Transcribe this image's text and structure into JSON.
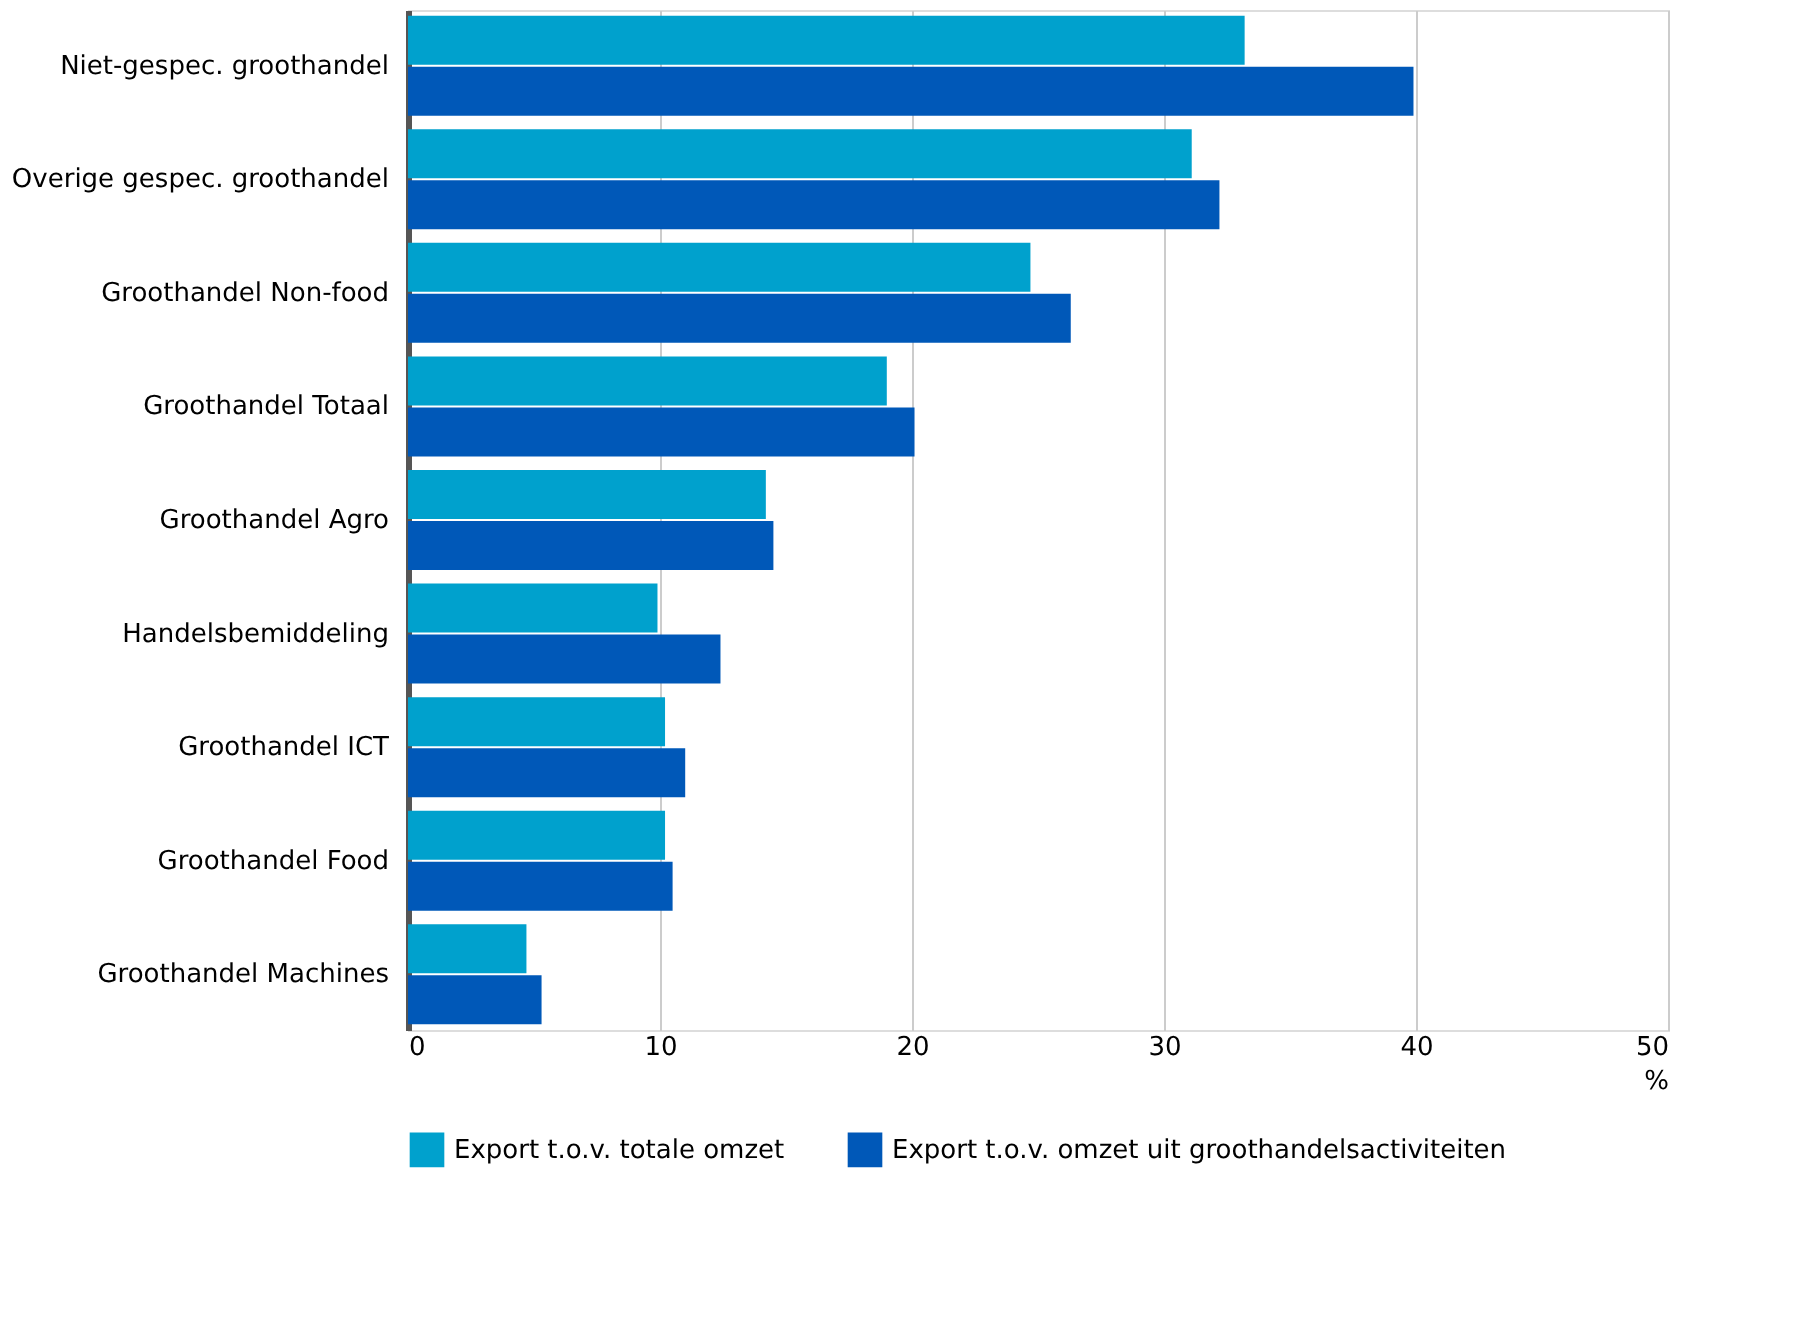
{
  "chart_data": {
    "type": "bar",
    "orientation": "horizontal",
    "xlabel": "%",
    "categories": [
      "Niet-gespec. groothandel",
      "Overige gespec. groothandel",
      "Groothandel Non-food",
      "Groothandel Totaal",
      "Groothandel Agro",
      "Handelsbemiddeling",
      "Groothandel ICT",
      "Groothandel Food",
      "Groothandel Machines"
    ],
    "series": [
      {
        "name": "Export t.o.v. totale omzet",
        "color": "#00a1cd",
        "values": [
          33.2,
          31.1,
          24.7,
          19.0,
          14.2,
          9.9,
          10.2,
          10.2,
          4.7
        ]
      },
      {
        "name": "Export t.o.v. omzet uit groothandelsactiviteiten",
        "color": "#0058b8",
        "values": [
          39.9,
          32.2,
          26.3,
          20.1,
          14.5,
          12.4,
          11.0,
          10.5,
          5.3
        ]
      }
    ],
    "xlim": [
      0,
      50
    ],
    "xticks": [
      0,
      10,
      20,
      30,
      40,
      50
    ],
    "grid": "x",
    "legend": "bottom"
  }
}
